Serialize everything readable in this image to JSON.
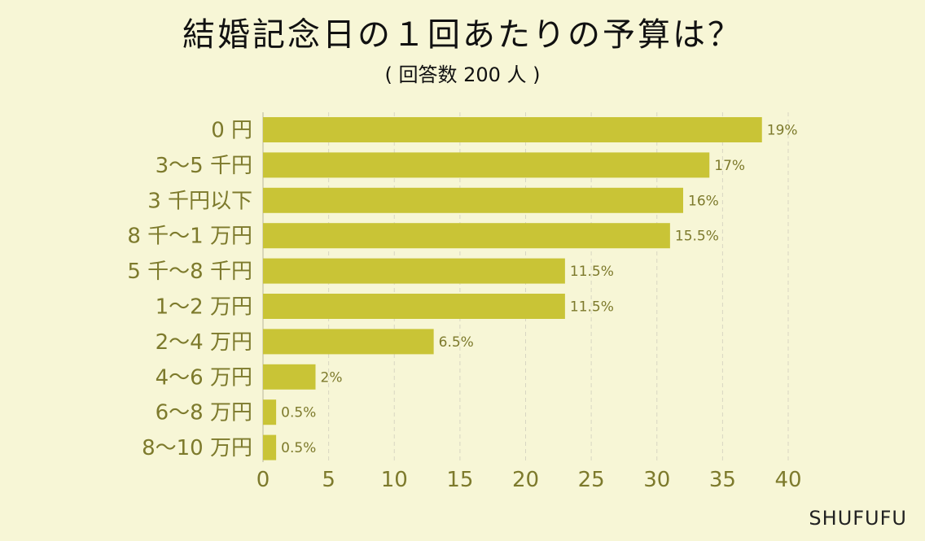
{
  "title": "結婚記念日の１回あたりの予算は？",
  "subtitle": "( 回答数 200 人 )",
  "brand": "SHUFUFU",
  "chart_data": {
    "type": "bar",
    "orientation": "horizontal",
    "title": "結婚記念日の１回あたりの予算は？",
    "subtitle": "( 回答数 200 人 )",
    "categories": [
      "0 円",
      "3～5 千円",
      "3 千円以下",
      "8 千～1 万円",
      "5 千～8 千円",
      "1～2 万円",
      "2～4 万円",
      "4～6 万円",
      "6～8 万円",
      "8～10 万円"
    ],
    "values": [
      38,
      34,
      32,
      31,
      23,
      23,
      13,
      4,
      1,
      1
    ],
    "data_labels": [
      "19%",
      "17%",
      "16%",
      "15.5%",
      "11.5%",
      "11.5%",
      "6.5%",
      "2%",
      "0.5%",
      "0.5%"
    ],
    "xlim": [
      0,
      40
    ],
    "xticks": [
      0,
      5,
      10,
      15,
      20,
      25,
      30,
      35,
      40
    ],
    "grid": "vertical dashed",
    "colors": {
      "bar": "#c9c436",
      "category_text": "#7d7a2c",
      "tick_text": "#7d7a2c",
      "value_text": "#7d7a2c",
      "grid": "#d8d6c2",
      "background": "#f7f6d6"
    }
  }
}
